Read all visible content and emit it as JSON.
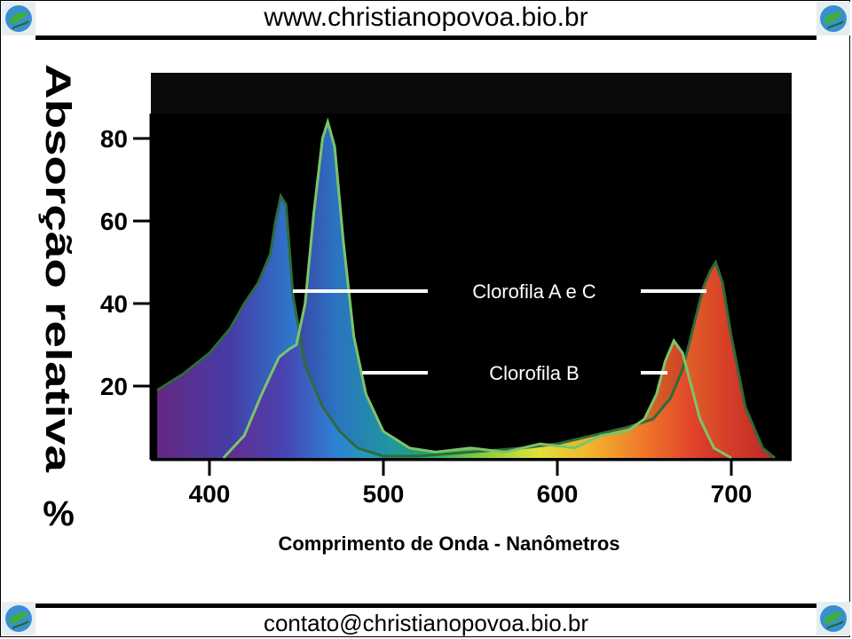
{
  "header": {
    "url": "www.christianopovoa.bio.br"
  },
  "footer": {
    "email": "contato@christianopovoa.bio.br"
  },
  "logo_icon": "globe-leaf-icon",
  "colors": {
    "background": "#000000",
    "curve_line": "#2e6b3a",
    "curve_b_line": "#7cc46a",
    "annotation": "#ffffff"
  },
  "chart_data": {
    "type": "area",
    "title": "",
    "xlabel": "Comprimento de Onda - Nanômetros",
    "ylabel": "Absorção relativa %",
    "xlim": [
      370,
      730
    ],
    "ylim": [
      0,
      86
    ],
    "xticks": [
      400,
      500,
      600,
      700
    ],
    "yticks": [
      20,
      40,
      60,
      80
    ],
    "grid": false,
    "annotations": [
      "Clorofila A e C",
      "Clorofila B"
    ],
    "series": [
      {
        "name": "Clorofila A e C",
        "x": [
          370,
          385,
          400,
          412,
          420,
          428,
          435,
          438,
          441,
          444,
          448,
          455,
          465,
          475,
          485,
          500,
          520,
          550,
          580,
          600,
          620,
          640,
          655,
          665,
          672,
          678,
          684,
          688,
          691,
          695,
          700,
          708,
          718,
          725
        ],
        "y": [
          19,
          23,
          28,
          34,
          40,
          45,
          52,
          60,
          66,
          64,
          42,
          25,
          15,
          9,
          5,
          3,
          3,
          4,
          5,
          6,
          8,
          10,
          12,
          17,
          24,
          34,
          44,
          48,
          50,
          45,
          32,
          15,
          5,
          1
        ]
      },
      {
        "name": "Clorofila B",
        "x": [
          408,
          420,
          430,
          440,
          446,
          450,
          455,
          460,
          465,
          468,
          472,
          477,
          483,
          490,
          500,
          515,
          530,
          550,
          570,
          590,
          610,
          625,
          640,
          650,
          657,
          662,
          667,
          672,
          677,
          682,
          690,
          700
        ],
        "y": [
          0,
          8,
          18,
          27,
          29,
          30,
          40,
          62,
          80,
          84,
          78,
          55,
          32,
          18,
          9,
          5,
          4,
          5,
          4,
          6,
          5,
          8,
          9,
          12,
          18,
          26,
          31,
          28,
          20,
          12,
          5,
          2
        ]
      }
    ]
  }
}
